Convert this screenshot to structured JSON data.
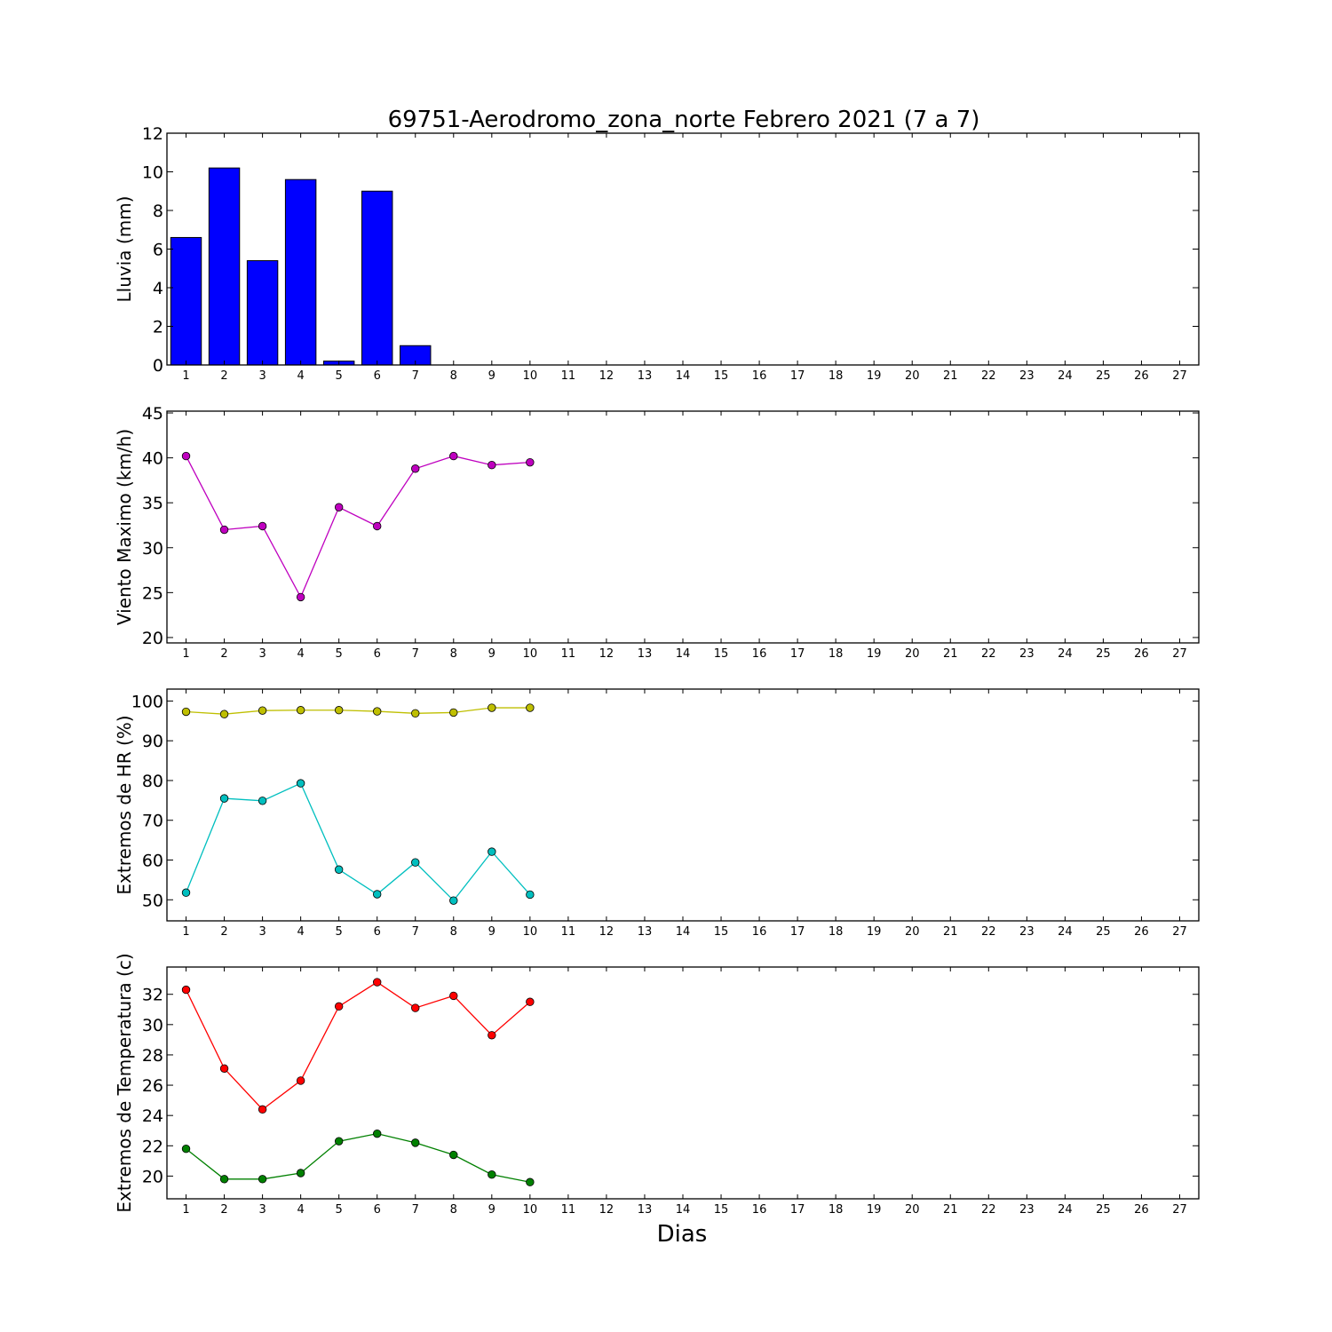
{
  "figure": {
    "title": "69751-Aerodromo_zona_norte Febrero 2021  (7 a 7)",
    "xlabel": "Dias"
  },
  "chart_data": [
    {
      "type": "bar",
      "ylabel": "Lluvia (mm)",
      "x": [
        1,
        2,
        3,
        4,
        5,
        6,
        7,
        8,
        9,
        10
      ],
      "series": [
        {
          "values": [
            6.6,
            10.2,
            5.4,
            9.6,
            0.2,
            9.0,
            1.0,
            0,
            0,
            0
          ],
          "color": "#0000ff"
        }
      ],
      "xlim": [
        0.5,
        27.5
      ],
      "ylim": [
        0,
        12
      ],
      "xticks": [
        1,
        2,
        3,
        4,
        5,
        6,
        7,
        8,
        9,
        10,
        11,
        12,
        13,
        14,
        15,
        16,
        17,
        18,
        19,
        20,
        21,
        22,
        23,
        24,
        25,
        26,
        27
      ],
      "yticks": [
        0,
        2,
        4,
        6,
        8,
        10,
        12
      ],
      "grid": false
    },
    {
      "type": "line",
      "ylabel": "Viento Maximo (km/h)",
      "x": [
        1,
        2,
        3,
        4,
        5,
        6,
        7,
        8,
        9,
        10
      ],
      "series": [
        {
          "values": [
            40.2,
            32.0,
            32.4,
            24.5,
            34.5,
            32.4,
            38.8,
            40.2,
            39.2,
            39.5
          ],
          "color": "#bf00bf"
        }
      ],
      "xlim": [
        0.5,
        27.5
      ],
      "ylim": [
        19.4,
        45.2
      ],
      "xticks": [
        1,
        2,
        3,
        4,
        5,
        6,
        7,
        8,
        9,
        10,
        11,
        12,
        13,
        14,
        15,
        16,
        17,
        18,
        19,
        20,
        21,
        22,
        23,
        24,
        25,
        26,
        27
      ],
      "yticks": [
        20,
        25,
        30,
        35,
        40,
        45
      ],
      "grid": false
    },
    {
      "type": "line",
      "ylabel": "Extremos de HR (%)",
      "x": [
        1,
        2,
        3,
        4,
        5,
        6,
        7,
        8,
        9,
        10
      ],
      "series": [
        {
          "values": [
            97.3,
            96.7,
            97.6,
            97.7,
            97.7,
            97.4,
            96.9,
            97.1,
            98.3,
            98.3
          ],
          "color": "#bfbf00"
        },
        {
          "values": [
            51.8,
            75.5,
            74.9,
            79.3,
            57.6,
            51.4,
            59.4,
            49.8,
            62.1,
            51.3
          ],
          "color": "#00bfbf"
        }
      ],
      "xlim": [
        0.5,
        27.5
      ],
      "ylim": [
        44.7,
        103.0
      ],
      "xticks": [
        1,
        2,
        3,
        4,
        5,
        6,
        7,
        8,
        9,
        10,
        11,
        12,
        13,
        14,
        15,
        16,
        17,
        18,
        19,
        20,
        21,
        22,
        23,
        24,
        25,
        26,
        27
      ],
      "yticks": [
        50,
        60,
        70,
        80,
        90,
        100
      ],
      "grid": false
    },
    {
      "type": "line",
      "ylabel": "Extremos de Temperatura (c)",
      "x": [
        1,
        2,
        3,
        4,
        5,
        6,
        7,
        8,
        9,
        10
      ],
      "series": [
        {
          "values": [
            32.3,
            27.1,
            24.4,
            26.3,
            31.2,
            32.8,
            31.1,
            31.9,
            29.3,
            31.5
          ],
          "color": "#ff0000"
        },
        {
          "values": [
            21.8,
            19.8,
            19.8,
            20.2,
            22.3,
            22.8,
            22.2,
            21.4,
            20.1,
            19.6
          ],
          "color": "#008000"
        }
      ],
      "xlim": [
        0.5,
        27.5
      ],
      "ylim": [
        18.5,
        33.8
      ],
      "xticks": [
        1,
        2,
        3,
        4,
        5,
        6,
        7,
        8,
        9,
        10,
        11,
        12,
        13,
        14,
        15,
        16,
        17,
        18,
        19,
        20,
        21,
        22,
        23,
        24,
        25,
        26,
        27
      ],
      "yticks": [
        20,
        22,
        24,
        26,
        28,
        30,
        32
      ],
      "grid": false
    }
  ]
}
